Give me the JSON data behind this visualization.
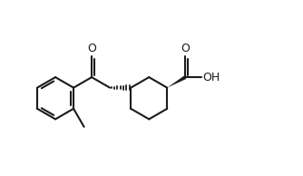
{
  "bg_color": "#ffffff",
  "line_color": "#1a1a1a",
  "lw": 1.5,
  "figsize": [
    3.34,
    1.94
  ],
  "dpi": 100,
  "xlim": [
    -0.3,
    10.0
  ],
  "ylim": [
    0.2,
    6.2
  ]
}
